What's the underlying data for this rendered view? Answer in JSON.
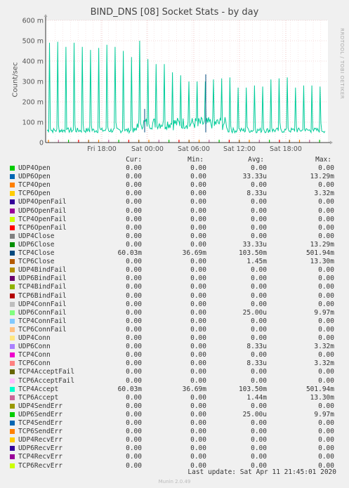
{
  "title": "BIND_DNS [08] Socket Stats - by day",
  "side_label": "RRDTOOL / TOBI OETIKER",
  "legend_headers": {
    "cur": "Cur:",
    "min": "Min:",
    "avg": "Avg:",
    "max": "Max:"
  },
  "last_update": "Last update: Sat Apr 11 21:45:01 2020",
  "footer": "Munin 2.0.49",
  "chart_data": {
    "type": "line",
    "title": "BIND_DNS [08] Socket Stats - by day",
    "ylabel": "Count/sec",
    "ylim": [
      0,
      600
    ],
    "yticks": [
      "0",
      "100 m",
      "200 m",
      "300 m",
      "400 m",
      "500 m",
      "600 m"
    ],
    "xticks": [
      "Fri 18:00",
      "Sat 00:00",
      "Sat 06:00",
      "Sat 12:00",
      "Sat 18:00"
    ],
    "grid": true,
    "main_series": {
      "name": "TCP4Close / TCP4Accept",
      "color": "#00cc99",
      "baseline": 60,
      "peaks": [
        490,
        495,
        470,
        490,
        470,
        455,
        465,
        480,
        470,
        450,
        420,
        500,
        410,
        385,
        385,
        345,
        330,
        300,
        300,
        300,
        310,
        315,
        320,
        270,
        270,
        280,
        275,
        310,
        315,
        320,
        270,
        280,
        280,
        275
      ]
    },
    "series": [
      {
        "name": "UDP4Open",
        "color": "#00cc00",
        "cur": "0.00",
        "min": "0.00",
        "avg": "0.00",
        "max": "0.00"
      },
      {
        "name": "UDP6Open",
        "color": "#0066b3",
        "cur": "0.00",
        "min": "0.00",
        "avg": "33.33u",
        "max": "13.29m"
      },
      {
        "name": "TCP4Open",
        "color": "#ff8000",
        "cur": "0.00",
        "min": "0.00",
        "avg": "0.00",
        "max": "0.00"
      },
      {
        "name": "TCP6Open",
        "color": "#ffcc00",
        "cur": "0.00",
        "min": "0.00",
        "avg": "8.33u",
        "max": "3.32m"
      },
      {
        "name": "UDP4OpenFail",
        "color": "#330099",
        "cur": "0.00",
        "min": "0.00",
        "avg": "0.00",
        "max": "0.00"
      },
      {
        "name": "UDP6OpenFail",
        "color": "#990099",
        "cur": "0.00",
        "min": "0.00",
        "avg": "0.00",
        "max": "0.00"
      },
      {
        "name": "TCP4OpenFail",
        "color": "#ccff00",
        "cur": "0.00",
        "min": "0.00",
        "avg": "0.00",
        "max": "0.00"
      },
      {
        "name": "TCP6OpenFail",
        "color": "#ff0000",
        "cur": "0.00",
        "min": "0.00",
        "avg": "0.00",
        "max": "0.00"
      },
      {
        "name": "UDP4Close",
        "color": "#808080",
        "cur": "0.00",
        "min": "0.00",
        "avg": "0.00",
        "max": "0.00"
      },
      {
        "name": "UDP6Close",
        "color": "#008f00",
        "cur": "0.00",
        "min": "0.00",
        "avg": "33.33u",
        "max": "13.29m"
      },
      {
        "name": "TCP4Close",
        "color": "#00487d",
        "cur": "60.03m",
        "min": "36.69m",
        "avg": "103.50m",
        "max": "501.94m"
      },
      {
        "name": "TCP6Close",
        "color": "#b35a00",
        "cur": "0.00",
        "min": "0.00",
        "avg": "1.45m",
        "max": "13.30m"
      },
      {
        "name": "UDP4BindFail",
        "color": "#b38f00",
        "cur": "0.00",
        "min": "0.00",
        "avg": "0.00",
        "max": "0.00"
      },
      {
        "name": "UDP6BindFail",
        "color": "#6b006b",
        "cur": "0.00",
        "min": "0.00",
        "avg": "0.00",
        "max": "0.00"
      },
      {
        "name": "TCP4BindFail",
        "color": "#8fb300",
        "cur": "0.00",
        "min": "0.00",
        "avg": "0.00",
        "max": "0.00"
      },
      {
        "name": "TCP6BindFail",
        "color": "#b30000",
        "cur": "0.00",
        "min": "0.00",
        "avg": "0.00",
        "max": "0.00"
      },
      {
        "name": "UDP4ConnFail",
        "color": "#bebebe",
        "cur": "0.00",
        "min": "0.00",
        "avg": "0.00",
        "max": "0.00"
      },
      {
        "name": "UDP6ConnFail",
        "color": "#80ff80",
        "cur": "0.00",
        "min": "0.00",
        "avg": "25.00u",
        "max": "9.97m"
      },
      {
        "name": "TCP4ConnFail",
        "color": "#80c9ff",
        "cur": "0.00",
        "min": "0.00",
        "avg": "0.00",
        "max": "0.00"
      },
      {
        "name": "TCP6ConnFail",
        "color": "#ffc080",
        "cur": "0.00",
        "min": "0.00",
        "avg": "0.00",
        "max": "0.00"
      },
      {
        "name": "UDP4Conn",
        "color": "#ffe680",
        "cur": "0.00",
        "min": "0.00",
        "avg": "0.00",
        "max": "0.00"
      },
      {
        "name": "UDP6Conn",
        "color": "#aa80ff",
        "cur": "0.00",
        "min": "0.00",
        "avg": "8.33u",
        "max": "3.32m"
      },
      {
        "name": "TCP4Conn",
        "color": "#ee00cc",
        "cur": "0.00",
        "min": "0.00",
        "avg": "0.00",
        "max": "0.00"
      },
      {
        "name": "TCP6Conn",
        "color": "#ff8080",
        "cur": "0.00",
        "min": "0.00",
        "avg": "8.33u",
        "max": "3.32m"
      },
      {
        "name": "TCP4AcceptFail",
        "color": "#666600",
        "cur": "0.00",
        "min": "0.00",
        "avg": "0.00",
        "max": "0.00"
      },
      {
        "name": "TCP6AcceptFail",
        "color": "#ffbfff",
        "cur": "0.00",
        "min": "0.00",
        "avg": "0.00",
        "max": "0.00"
      },
      {
        "name": "TCP4Accept",
        "color": "#00ffcc",
        "cur": "60.03m",
        "min": "36.69m",
        "avg": "103.50m",
        "max": "501.94m"
      },
      {
        "name": "TCP6Accept",
        "color": "#cc6699",
        "cur": "0.00",
        "min": "0.00",
        "avg": "1.44m",
        "max": "13.30m"
      },
      {
        "name": "UDP4SendErr",
        "color": "#999900",
        "cur": "0.00",
        "min": "0.00",
        "avg": "0.00",
        "max": "0.00"
      },
      {
        "name": "UDP6SendErr",
        "color": "#00cc00",
        "cur": "0.00",
        "min": "0.00",
        "avg": "25.00u",
        "max": "9.97m"
      },
      {
        "name": "TCP4SendErr",
        "color": "#0066b3",
        "cur": "0.00",
        "min": "0.00",
        "avg": "0.00",
        "max": "0.00"
      },
      {
        "name": "TCP6SendErr",
        "color": "#ff8000",
        "cur": "0.00",
        "min": "0.00",
        "avg": "0.00",
        "max": "0.00"
      },
      {
        "name": "UDP4RecvErr",
        "color": "#ffcc00",
        "cur": "0.00",
        "min": "0.00",
        "avg": "0.00",
        "max": "0.00"
      },
      {
        "name": "UDP6RecvErr",
        "color": "#330099",
        "cur": "0.00",
        "min": "0.00",
        "avg": "0.00",
        "max": "0.00"
      },
      {
        "name": "TCP4RecvErr",
        "color": "#990099",
        "cur": "0.00",
        "min": "0.00",
        "avg": "0.00",
        "max": "0.00"
      },
      {
        "name": "TCP6RecvErr",
        "color": "#ccff00",
        "cur": "0.00",
        "min": "0.00",
        "avg": "0.00",
        "max": "0.00"
      }
    ]
  }
}
